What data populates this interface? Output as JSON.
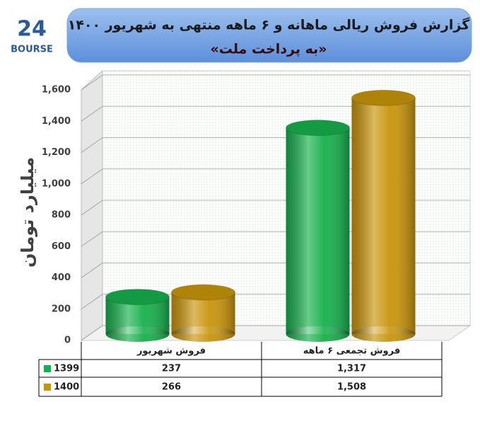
{
  "logo": {
    "number": "24",
    "text": "BOURSE"
  },
  "chart_data": {
    "type": "bar",
    "title": "گزارش فروش ریالی ماهانه و ۶ ماهه منتهی به شهریور ۱۴۰۰",
    "subtitle": "«به پرداخت ملت»",
    "y_label": "میلیارد تومان",
    "categories": [
      "فروش شهریور",
      "فروش تجمعی ۶ ماهه"
    ],
    "series": [
      {
        "name": "1399",
        "color": "#16b04c",
        "values": [
          237,
          1317
        ],
        "value_labels": [
          "237",
          "1,317"
        ]
      },
      {
        "name": "1400",
        "color": "#c8940a",
        "values": [
          266,
          1508
        ],
        "value_labels": [
          "266",
          "1,508"
        ]
      }
    ],
    "ylim": [
      0,
      1600
    ],
    "yticks": [
      0,
      200,
      400,
      600,
      800,
      {
        "value": 1000,
        "label": "1,000"
      },
      {
        "value": 1200,
        "label": "1,200"
      },
      {
        "value": 1400,
        "label": "1,400"
      },
      {
        "value": 1600,
        "label": "1,600"
      }
    ],
    "grid": true
  }
}
